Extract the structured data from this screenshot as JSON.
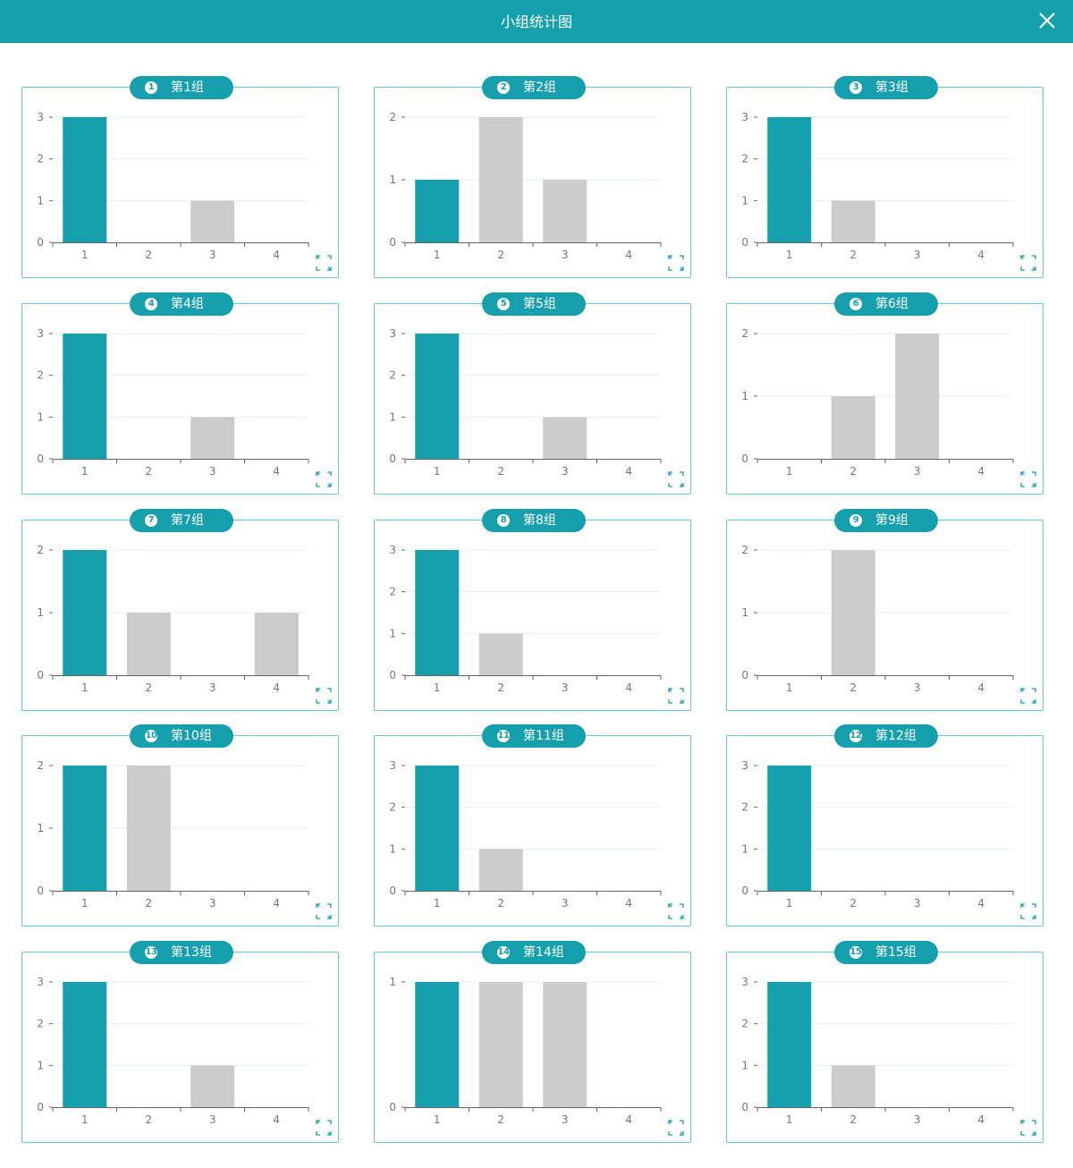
{
  "header": {
    "title": "小组统计图"
  },
  "colors": {
    "accent": "#169fad",
    "primary_bar": "#169fad",
    "secondary_bar": "#cccccc",
    "grid": "#e3f0f2",
    "axis": "#666666"
  },
  "icons": {
    "close": "close-icon",
    "expand": "expand-icon"
  },
  "chart_data": [
    {
      "type": "bar",
      "group_num": "1",
      "title": "第1组",
      "categories": [
        "1",
        "2",
        "3",
        "4"
      ],
      "values": [
        3,
        0,
        1,
        0
      ],
      "ylim": [
        0,
        3
      ],
      "yticks": [
        "0",
        "1",
        "2",
        "3"
      ]
    },
    {
      "type": "bar",
      "group_num": "2",
      "title": "第2组",
      "categories": [
        "1",
        "2",
        "3",
        "4"
      ],
      "values": [
        1,
        2,
        1,
        0
      ],
      "ylim": [
        0,
        2
      ],
      "yticks": [
        "0",
        "1",
        "2"
      ]
    },
    {
      "type": "bar",
      "group_num": "3",
      "title": "第3组",
      "categories": [
        "1",
        "2",
        "3",
        "4"
      ],
      "values": [
        3,
        1,
        0,
        0
      ],
      "ylim": [
        0,
        3
      ],
      "yticks": [
        "0",
        "1",
        "2",
        "3"
      ]
    },
    {
      "type": "bar",
      "group_num": "4",
      "title": "第4组",
      "categories": [
        "1",
        "2",
        "3",
        "4"
      ],
      "values": [
        3,
        0,
        1,
        0
      ],
      "ylim": [
        0,
        3
      ],
      "yticks": [
        "0",
        "1",
        "2",
        "3"
      ]
    },
    {
      "type": "bar",
      "group_num": "5",
      "title": "第5组",
      "categories": [
        "1",
        "2",
        "3",
        "4"
      ],
      "values": [
        3,
        0,
        1,
        0
      ],
      "ylim": [
        0,
        3
      ],
      "yticks": [
        "0",
        "1",
        "2",
        "3"
      ]
    },
    {
      "type": "bar",
      "group_num": "6",
      "title": "第6组",
      "categories": [
        "1",
        "2",
        "3",
        "4"
      ],
      "values": [
        0,
        1,
        2,
        0
      ],
      "ylim": [
        0,
        2
      ],
      "yticks": [
        "0",
        "1",
        "2"
      ]
    },
    {
      "type": "bar",
      "group_num": "7",
      "title": "第7组",
      "categories": [
        "1",
        "2",
        "3",
        "4"
      ],
      "values": [
        2,
        1,
        0,
        1
      ],
      "ylim": [
        0,
        2
      ],
      "yticks": [
        "0",
        "1",
        "2"
      ]
    },
    {
      "type": "bar",
      "group_num": "8",
      "title": "第8组",
      "categories": [
        "1",
        "2",
        "3",
        "4"
      ],
      "values": [
        3,
        1,
        0,
        0
      ],
      "ylim": [
        0,
        3
      ],
      "yticks": [
        "0",
        "1",
        "2",
        "3"
      ]
    },
    {
      "type": "bar",
      "group_num": "9",
      "title": "第9组",
      "categories": [
        "1",
        "2",
        "3",
        "4"
      ],
      "values": [
        0,
        2,
        0,
        0
      ],
      "ylim": [
        0,
        2
      ],
      "yticks": [
        "0",
        "1",
        "2"
      ]
    },
    {
      "type": "bar",
      "group_num": "10",
      "title": "第10组",
      "categories": [
        "1",
        "2",
        "3",
        "4"
      ],
      "values": [
        2,
        2,
        0,
        0
      ],
      "ylim": [
        0,
        2
      ],
      "yticks": [
        "0",
        "1",
        "2"
      ]
    },
    {
      "type": "bar",
      "group_num": "11",
      "title": "第11组",
      "categories": [
        "1",
        "2",
        "3",
        "4"
      ],
      "values": [
        3,
        1,
        0,
        0
      ],
      "ylim": [
        0,
        3
      ],
      "yticks": [
        "0",
        "1",
        "2",
        "3"
      ]
    },
    {
      "type": "bar",
      "group_num": "12",
      "title": "第12组",
      "categories": [
        "1",
        "2",
        "3",
        "4"
      ],
      "values": [
        3,
        0,
        0,
        0
      ],
      "ylim": [
        0,
        3
      ],
      "yticks": [
        "0",
        "1",
        "2",
        "3"
      ]
    },
    {
      "type": "bar",
      "group_num": "13",
      "title": "第13组",
      "categories": [
        "1",
        "2",
        "3",
        "4"
      ],
      "values": [
        3,
        0,
        1,
        0
      ],
      "ylim": [
        0,
        3
      ],
      "yticks": [
        "0",
        "1",
        "2",
        "3"
      ]
    },
    {
      "type": "bar",
      "group_num": "14",
      "title": "第14组",
      "categories": [
        "1",
        "2",
        "3",
        "4"
      ],
      "values": [
        1,
        1,
        1,
        0
      ],
      "ylim": [
        0,
        1
      ],
      "yticks": [
        "0",
        "1"
      ]
    },
    {
      "type": "bar",
      "group_num": "15",
      "title": "第15组",
      "categories": [
        "1",
        "2",
        "3",
        "4"
      ],
      "values": [
        3,
        1,
        0,
        0
      ],
      "ylim": [
        0,
        3
      ],
      "yticks": [
        "0",
        "1",
        "2",
        "3"
      ]
    }
  ]
}
